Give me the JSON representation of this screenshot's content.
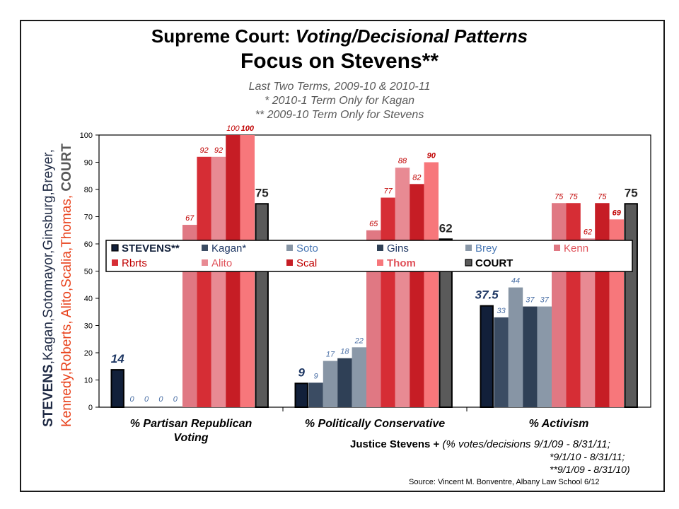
{
  "title_line1_prefix": "Supreme Court: ",
  "title_line1_italic": "Voting/Decisional Patterns",
  "title_line2": "Focus on Stevens**",
  "subtitle1": "Last Two Terms, 2009-10 & 2010-11",
  "subtitle2": "* 2010-1 Term Only for Kagan",
  "subtitle3": "** 2009-10 Term Only for Stevens",
  "vertical_label": {
    "line1": [
      {
        "text": "STEVENS",
        "color": "#1f2a44",
        "bold": true
      },
      {
        "text": ",Kagan,Sotomayor,Ginsburg,Breyer,",
        "color": "#1f2a44",
        "bold": false
      }
    ],
    "line2": [
      {
        "text": "Kennedy,Roberts, ",
        "color": "#e8411b",
        "bold": false
      },
      {
        "text": "Alito,Scalia,Thomas,",
        "color": "#e8411b",
        "bold": false
      },
      {
        "text": "  COURT",
        "color": "#595959",
        "bold": true
      }
    ]
  },
  "chart_data": {
    "type": "bar",
    "categories": [
      "% Partisan Republican Voting",
      "% Politically Conservative",
      "% Activism"
    ],
    "category_lines": [
      [
        "% Partisan Republican",
        "Voting"
      ],
      [
        "% Politically Conservative"
      ],
      [
        "% Activism"
      ]
    ],
    "ylim": [
      0,
      100
    ],
    "yticks": [
      "0",
      "10",
      "20",
      "30",
      "40",
      "50",
      "60",
      "70",
      "80",
      "90",
      "100"
    ],
    "grid": false,
    "legend_position": "center",
    "series": [
      {
        "name": "STEVENS**",
        "color": "#12203a",
        "outline": "#000000",
        "values": [
          14,
          9,
          37.5
        ],
        "labels": [
          "14",
          "9",
          "37.5"
        ],
        "label_color": "#1f3864",
        "label_style": "big-bold"
      },
      {
        "name": "Kagan*",
        "color": "#3b4c63",
        "values": [
          0,
          9,
          33
        ],
        "labels": [
          "0",
          "9",
          "33"
        ],
        "label_color": "#4a6fa5",
        "label_style": "italic"
      },
      {
        "name": "Soto",
        "color": "#8795a5",
        "values": [
          0,
          17,
          44
        ],
        "labels": [
          "0",
          "17",
          "44"
        ],
        "label_color": "#4a6fa5",
        "label_style": "italic"
      },
      {
        "name": "Gins",
        "color": "#2f4056",
        "values": [
          0,
          18,
          37
        ],
        "labels": [
          "0",
          "18",
          "37"
        ],
        "label_color": "#4a6fa5",
        "label_style": "italic"
      },
      {
        "name": "Brey",
        "color": "#8a98a8",
        "values": [
          0,
          22,
          37
        ],
        "labels": [
          "0",
          "22",
          "37"
        ],
        "label_color": "#4a6fa5",
        "label_style": "italic"
      },
      {
        "name": "Kenn",
        "color": "#e07883",
        "values": [
          67,
          65,
          75
        ],
        "labels": [
          "67",
          "65",
          "75"
        ],
        "label_color": "#c00000",
        "label_style": "italic"
      },
      {
        "name": "Rbrts",
        "color": "#d62d35",
        "values": [
          92,
          77,
          75
        ],
        "labels": [
          "92",
          "77",
          "75"
        ],
        "label_color": "#c00000",
        "label_style": "italic"
      },
      {
        "name": "Alito",
        "color": "#e88a93",
        "values": [
          92,
          88,
          62
        ],
        "labels": [
          "92",
          "88",
          "62"
        ],
        "label_color": "#c00000",
        "label_style": "italic"
      },
      {
        "name": "Scal",
        "color": "#c61d25",
        "values": [
          100,
          82,
          75
        ],
        "labels": [
          "100",
          "82",
          "75"
        ],
        "label_color": "#c00000",
        "label_style": "italic"
      },
      {
        "name": "Thom",
        "color": "#f7777b",
        "values": [
          100,
          90,
          69
        ],
        "labels": [
          "100",
          "90",
          "69"
        ],
        "label_color": "#c00000",
        "label_style": "bold-italic"
      },
      {
        "name": "COURT",
        "color": "#5a5a5a",
        "outline": "#000000",
        "values": [
          75,
          62,
          75
        ],
        "labels": [
          "75",
          "62",
          "75"
        ],
        "label_color": "#262626",
        "label_style": "big-bold"
      }
    ]
  },
  "footnote": {
    "bold": "Justice Stevens + ",
    "line1": "(% votes/decisions 9/1/09 - 8/31/11;",
    "line2": "*9/1/10 - 8/31/11;",
    "line3": "**9/1/09 - 8/31/10)"
  },
  "source": "Source: Vincent M. Bonventre, Albany Law School 6/12"
}
